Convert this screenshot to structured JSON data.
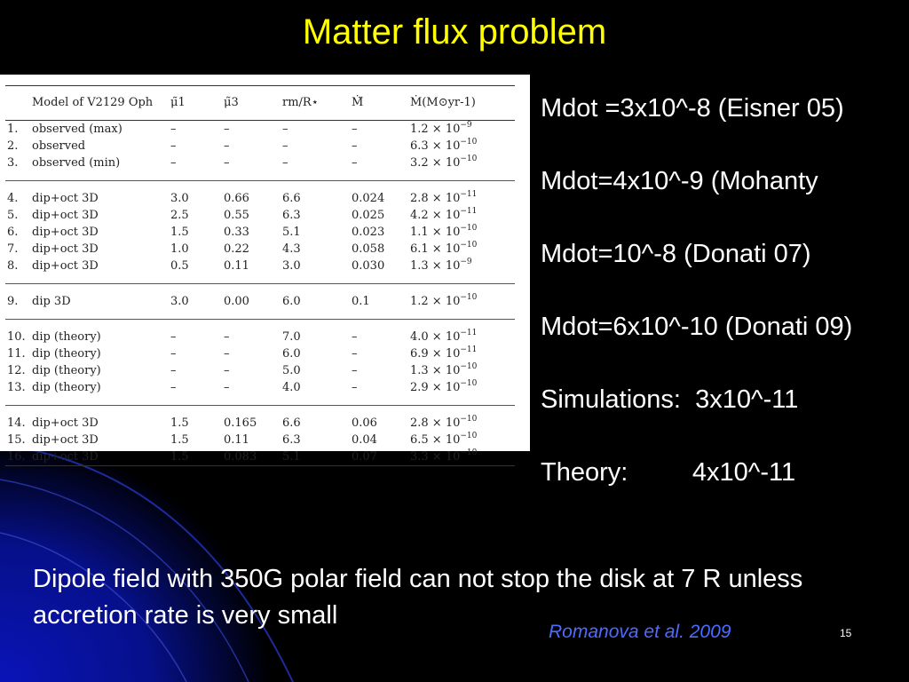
{
  "slide": {
    "title": "Matter flux problem",
    "page_number": "15",
    "citation": "Romanova et al. 2009",
    "title_color": "#ffff00",
    "citation_color": "#4d6bff"
  },
  "table": {
    "headers": [
      "",
      "Model of V2129 Oph",
      "μ̃1",
      "μ̃3",
      "rm/R⋆",
      "Ṁ̃",
      "Ṁ(M⊙yr-1)"
    ],
    "rows": [
      {
        "n": "1.",
        "model": "observed (max)",
        "mu1": "–",
        "mu3": "–",
        "rm": "–",
        "mdot_tilde": "–",
        "mdot_base": "1.2 × 10",
        "mdot_exp": "−9"
      },
      {
        "n": "2.",
        "model": "observed",
        "mu1": "–",
        "mu3": "–",
        "rm": "–",
        "mdot_tilde": "–",
        "mdot_base": "6.3 × 10",
        "mdot_exp": "−10"
      },
      {
        "n": "3.",
        "model": "observed (min)",
        "mu1": "–",
        "mu3": "–",
        "rm": "–",
        "mdot_tilde": "–",
        "mdot_base": "3.2 × 10",
        "mdot_exp": "−10"
      },
      {
        "n": "4.",
        "model": "dip+oct 3D",
        "mu1": "3.0",
        "mu3": "0.66",
        "rm": "6.6",
        "mdot_tilde": "0.024",
        "mdot_base": "2.8 × 10",
        "mdot_exp": "−11"
      },
      {
        "n": "5.",
        "model": "dip+oct 3D",
        "mu1": "2.5",
        "mu3": "0.55",
        "rm": "6.3",
        "mdot_tilde": "0.025",
        "mdot_base": "4.2 × 10",
        "mdot_exp": "−11"
      },
      {
        "n": "6.",
        "model": "dip+oct 3D",
        "mu1": "1.5",
        "mu3": "0.33",
        "rm": "5.1",
        "mdot_tilde": "0.023",
        "mdot_base": "1.1 × 10",
        "mdot_exp": "−10"
      },
      {
        "n": "7.",
        "model": "dip+oct 3D",
        "mu1": "1.0",
        "mu3": "0.22",
        "rm": "4.3",
        "mdot_tilde": "0.058",
        "mdot_base": "6.1 × 10",
        "mdot_exp": "−10"
      },
      {
        "n": "8.",
        "model": "dip+oct 3D",
        "mu1": "0.5",
        "mu3": "0.11",
        "rm": "3.0",
        "mdot_tilde": "0.030",
        "mdot_base": "1.3 × 10",
        "mdot_exp": "−9"
      },
      {
        "n": "9.",
        "model": "dip 3D",
        "mu1": "3.0",
        "mu3": "0.00",
        "rm": "6.0",
        "mdot_tilde": "0.1",
        "mdot_base": "1.2 × 10",
        "mdot_exp": "−10"
      },
      {
        "n": "10.",
        "model": "dip (theory)",
        "mu1": "–",
        "mu3": "–",
        "rm": "7.0",
        "mdot_tilde": "–",
        "mdot_base": "4.0 × 10",
        "mdot_exp": "−11"
      },
      {
        "n": "11.",
        "model": "dip (theory)",
        "mu1": "–",
        "mu3": "–",
        "rm": "6.0",
        "mdot_tilde": "–",
        "mdot_base": "6.9 × 10",
        "mdot_exp": "−11"
      },
      {
        "n": "12.",
        "model": "dip (theory)",
        "mu1": "–",
        "mu3": "–",
        "rm": "5.0",
        "mdot_tilde": "–",
        "mdot_base": "1.3 × 10",
        "mdot_exp": "−10"
      },
      {
        "n": "13.",
        "model": "dip (theory)",
        "mu1": "–",
        "mu3": "–",
        "rm": "4.0",
        "mdot_tilde": "–",
        "mdot_base": "2.9 × 10",
        "mdot_exp": "−10"
      },
      {
        "n": "14.",
        "model": "dip+oct 3D",
        "mu1": "1.5",
        "mu3": "0.165",
        "rm": "6.6",
        "mdot_tilde": "0.06",
        "mdot_base": "2.8 × 10",
        "mdot_exp": "−10"
      },
      {
        "n": "15.",
        "model": "dip+oct 3D",
        "mu1": "1.5",
        "mu3": "0.11",
        "rm": "6.3",
        "mdot_tilde": "0.04",
        "mdot_base": "6.5 × 10",
        "mdot_exp": "−10"
      },
      {
        "n": "16.",
        "model": "dip+oct 3D",
        "mu1": "1.5",
        "mu3": "0.083",
        "rm": "5.1",
        "mdot_tilde": "0.07",
        "mdot_base": "3.3 × 10",
        "mdot_exp": "−10"
      }
    ]
  },
  "mdot_list": [
    "Mdot =3x10^-8 (Eisner 05)",
    "Mdot=4x10^-9 (Mohanty",
    "Mdot=10^-8 (Donati 07)",
    "Mdot=6x10^-10 (Donati 09)",
    "Simulations:  3x10^-11",
    "Theory:         4x10^-11"
  ],
  "bottom_text": "Dipole field with 350G polar field can not stop the disk at 7 R unless accretion rate is very small"
}
